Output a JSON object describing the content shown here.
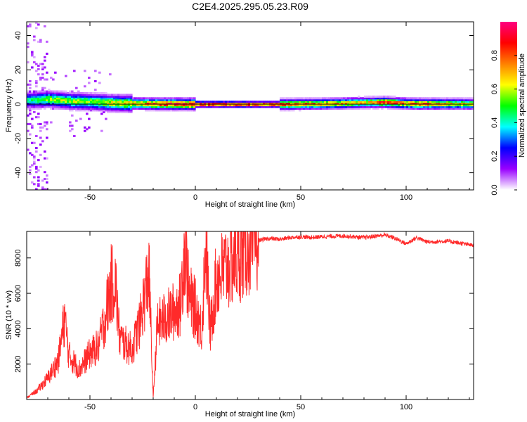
{
  "title": "C2E4.2025.295.05.23.R09",
  "colors": {
    "snr_line": "#ff2a2a",
    "colorbar": [
      "#ffffff",
      "#9900ff",
      "#0000ff",
      "#00ffff",
      "#00ff00",
      "#ffff00",
      "#ff8000",
      "#ff0000",
      "#ff0080"
    ]
  },
  "chart_data": [
    {
      "type": "heatmap",
      "xlabel": "Height of straight line (km)",
      "ylabel": "Frequency (Hz)",
      "xlim": [
        -80,
        132
      ],
      "ylim": [
        -50,
        48
      ],
      "x_ticks": [
        -50,
        0,
        50,
        100
      ],
      "y_ticks": [
        -40,
        -20,
        0,
        20,
        40
      ],
      "colorbar": {
        "label": "Normalized spectral amplitude",
        "range": [
          0.0,
          1.0
        ],
        "ticks": [
          "0.0",
          "0.2",
          "0.4",
          "0.6",
          "0.8"
        ]
      },
      "ridge": [
        {
          "x": -78,
          "freq": 2.5,
          "amp": 0.45
        },
        {
          "x": -70,
          "freq": 3.0,
          "amp": 0.55
        },
        {
          "x": -60,
          "freq": 2.0,
          "amp": 0.6
        },
        {
          "x": -50,
          "freq": 1.5,
          "amp": 0.55
        },
        {
          "x": -40,
          "freq": 0.8,
          "amp": 0.65
        },
        {
          "x": -30,
          "freq": 0.5,
          "amp": 0.7
        },
        {
          "x": -20,
          "freq": 0.3,
          "amp": 0.85
        },
        {
          "x": -10,
          "freq": 0.2,
          "amp": 0.9
        },
        {
          "x": 0,
          "freq": 0.1,
          "amp": 0.95
        },
        {
          "x": 20,
          "freq": 0.0,
          "amp": 0.95
        },
        {
          "x": 40,
          "freq": 0.0,
          "amp": 0.85
        },
        {
          "x": 60,
          "freq": 0.3,
          "amp": 0.75
        },
        {
          "x": 80,
          "freq": 1.0,
          "amp": 0.7
        },
        {
          "x": 90,
          "freq": 1.2,
          "amp": 0.9
        },
        {
          "x": 100,
          "freq": 0.5,
          "amp": 0.75
        },
        {
          "x": 105,
          "freq": 0.3,
          "amp": 0.85
        },
        {
          "x": 120,
          "freq": 0.3,
          "amp": 0.7
        },
        {
          "x": 132,
          "freq": 0.2,
          "amp": 0.65
        }
      ]
    },
    {
      "type": "line",
      "xlabel": "Height of straight line (km)",
      "ylabel": "SNR (10 * v/v)",
      "xlim": [
        -80,
        132
      ],
      "ylim": [
        0,
        9500
      ],
      "x_ticks": [
        -50,
        0,
        50,
        100
      ],
      "y_ticks": [
        2000,
        4000,
        6000,
        8000
      ],
      "x": [
        -80,
        -75,
        -70,
        -65,
        -62,
        -60,
        -55,
        -50,
        -46,
        -43,
        -40,
        -38,
        -36,
        -34,
        -30,
        -26,
        -22,
        -20,
        -18,
        -15,
        -10,
        -7,
        -5,
        -3,
        0,
        3,
        5,
        7,
        10,
        15,
        20,
        25,
        30,
        35,
        40,
        45,
        50,
        55,
        60,
        70,
        80,
        90,
        95,
        100,
        105,
        110,
        120,
        132
      ],
      "values": [
        100,
        500,
        1200,
        2200,
        4600,
        2500,
        1700,
        2600,
        3000,
        4500,
        6500,
        6700,
        3500,
        3200,
        2800,
        4500,
        7200,
        100,
        4200,
        4500,
        5000,
        5400,
        9000,
        5800,
        5100,
        4000,
        9000,
        3800,
        6800,
        7500,
        8200,
        8800,
        9000,
        9100,
        9050,
        9150,
        9200,
        9150,
        9200,
        9250,
        9150,
        9300,
        9100,
        8800,
        9150,
        8900,
        8950,
        8700
      ]
    }
  ]
}
